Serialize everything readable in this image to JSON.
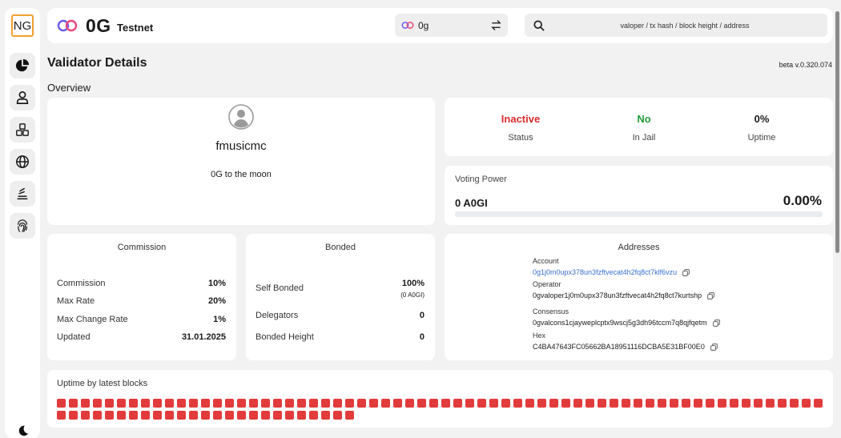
{
  "sidebar": {
    "logo_text": "NG",
    "items": [
      {
        "icon": "pie-chart-icon"
      },
      {
        "icon": "user-icon"
      },
      {
        "icon": "cubes-icon"
      },
      {
        "icon": "globe-icon"
      },
      {
        "icon": "stack-icon"
      },
      {
        "icon": "fingerprint-icon"
      }
    ],
    "theme_toggle_icon": "moon-icon"
  },
  "topbar": {
    "brand_name": "0G",
    "network_label": "Testnet",
    "chain_selector_value": "0g",
    "search_placeholder": "valoper / tx hash / block height / address"
  },
  "page": {
    "title": "Validator Details",
    "version": "beta v.0.320.074",
    "section_label": "Overview"
  },
  "profile": {
    "name": "fmusicmc",
    "description": "0G to the moon"
  },
  "status": {
    "items": [
      {
        "value": "Inactive",
        "label": "Status",
        "color": "#d62c2c"
      },
      {
        "value": "No",
        "label": "In Jail",
        "color": "#1f9d3a"
      },
      {
        "value": "0%",
        "label": "Uptime",
        "color": "#1a1a1a"
      }
    ]
  },
  "voting_power": {
    "title": "Voting Power",
    "amount": "0 A0GI",
    "percent": "0.00%",
    "fill_fraction": 0
  },
  "commission": {
    "title": "Commission",
    "rows": [
      {
        "label": "Commission",
        "value": "10%"
      },
      {
        "label": "Max Rate",
        "value": "20%"
      },
      {
        "label": "Max Change Rate",
        "value": "1%"
      },
      {
        "label": "Updated",
        "value": "31.01.2025"
      }
    ]
  },
  "bonded": {
    "title": "Bonded",
    "self_bonded_label": "Self Bonded",
    "self_bonded_value": "100%",
    "self_bonded_sub": "(0 A0GI)",
    "delegators_label": "Delegators",
    "delegators_value": "0",
    "bonded_height_label": "Bonded Height",
    "bonded_height_value": "0"
  },
  "addresses": {
    "title": "Addresses",
    "items": [
      {
        "label": "Account",
        "value": "0g1j0m0upx378un3fzftvecat4h2fq8ct7klf6vzu",
        "is_link": true
      },
      {
        "label": "Operator",
        "value": "0gvaloper1j0m0upx378un3fzftvecat4h2fq8ct7kurtshp",
        "is_link": false
      },
      {
        "label": "Consensus",
        "value": "0gvalcons1cjayweplcptx9wscj5g3dh96tccm7q8qjfqetm",
        "is_link": false
      },
      {
        "label": "Hex",
        "value": "C4BA47643FC05662BA18951116DCBA5E31BF00E0",
        "is_link": false
      }
    ]
  },
  "uptime": {
    "title": "Uptime by latest blocks",
    "block_count": 89,
    "block_status": "missed",
    "block_color": "#e23b3b"
  }
}
